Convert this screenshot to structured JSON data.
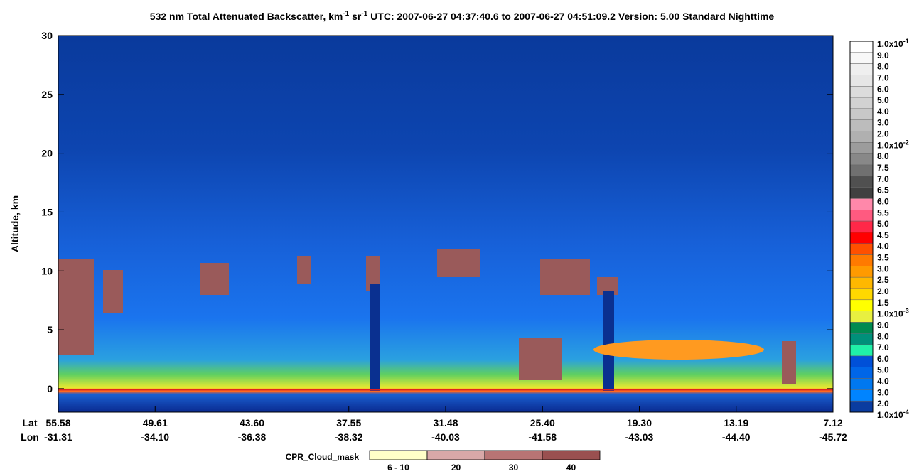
{
  "chart_data": {
    "type": "heatmap",
    "title": [
      {
        "text": "532 nm Total Attenuated Backscatter, km"
      },
      {
        "text": "-1",
        "sup": true
      },
      {
        "text": " sr"
      },
      {
        "text": "-1",
        "sup": true
      },
      {
        "text": "   UTC:  2007-06-27 04:37:40.6  to  2007-06-27 04:51:09.2    Version: 5.00  Standard  Nighttime"
      }
    ],
    "y_label": "Altitude, km",
    "ylim": [
      -2,
      30
    ],
    "yticks": [
      0,
      5,
      10,
      15,
      20,
      25,
      30
    ],
    "x_row_labels": [
      "Lat",
      "Lon"
    ],
    "lat": [
      "55.58",
      "49.61",
      "43.60",
      "37.55",
      "31.48",
      "25.40",
      "19.30",
      "13.19",
      "7.12"
    ],
    "lon": [
      "-31.31",
      "-34.10",
      "-36.38",
      "-38.32",
      "-40.03",
      "-41.58",
      "-43.03",
      "-44.40",
      "-45.72"
    ],
    "colorbar": {
      "labels": [
        {
          "text": "1.0x10",
          "sup": "-1"
        },
        {
          "text": "9.0"
        },
        {
          "text": "8.0"
        },
        {
          "text": "7.0"
        },
        {
          "text": "6.0"
        },
        {
          "text": "5.0"
        },
        {
          "text": "4.0"
        },
        {
          "text": "3.0"
        },
        {
          "text": "2.0"
        },
        {
          "text": "1.0x10",
          "sup": "-2"
        },
        {
          "text": "8.0"
        },
        {
          "text": "7.5"
        },
        {
          "text": "7.0"
        },
        {
          "text": "6.5"
        },
        {
          "text": "6.0"
        },
        {
          "text": "5.5"
        },
        {
          "text": "5.0"
        },
        {
          "text": "4.5"
        },
        {
          "text": "4.0"
        },
        {
          "text": "3.5"
        },
        {
          "text": "3.0"
        },
        {
          "text": "2.5"
        },
        {
          "text": "2.0"
        },
        {
          "text": "1.5"
        },
        {
          "text": "1.0x10",
          "sup": "-3"
        },
        {
          "text": "9.0"
        },
        {
          "text": "8.0"
        },
        {
          "text": "7.0"
        },
        {
          "text": "6.0"
        },
        {
          "text": "5.0"
        },
        {
          "text": "4.0"
        },
        {
          "text": "3.0"
        },
        {
          "text": "2.0"
        },
        {
          "text": "1.0x10",
          "sup": "-4"
        }
      ],
      "colors": [
        "#ffffff",
        "#f8f8f8",
        "#efefef",
        "#e6e6e6",
        "#dcdcdc",
        "#d2d2d2",
        "#c8c8c8",
        "#bcbcbc",
        "#b0b0b0",
        "#9c9c9c",
        "#888888",
        "#707070",
        "#505050",
        "#404040",
        "#ff88aa",
        "#ff5a80",
        "#ff2848",
        "#ff0000",
        "#ff5000",
        "#ff7a00",
        "#ff9a00",
        "#ffb800",
        "#ffd800",
        "#ffff00",
        "#e8f040",
        "#008a50",
        "#00907a",
        "#20f0a8",
        "#0050d8",
        "#0066e8",
        "#0078f0",
        "#0084ff",
        "#0a3ca0",
        "#082890"
      ]
    },
    "cpr": {
      "title": "CPR_Cloud_mask",
      "labels": [
        "6 - 10",
        "20",
        "30",
        "40"
      ],
      "colors": [
        "#ffffc8",
        "#d8a8a8",
        "#b87474",
        "#9a5050"
      ]
    }
  }
}
